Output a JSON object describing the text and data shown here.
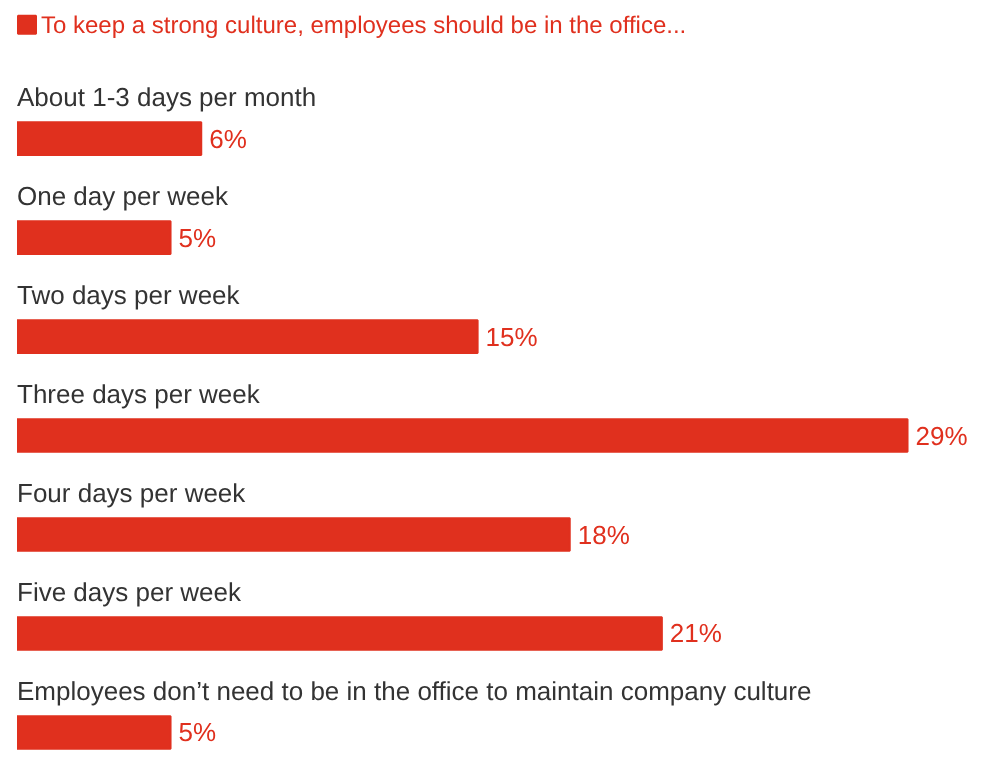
{
  "chart_data": {
    "type": "bar",
    "orientation": "horizontal",
    "categories": [
      "About 1-3 days per month",
      "One day per week",
      "Two days per week",
      "Three days per week",
      "Four days per week",
      "Five days per week",
      "Employees don’t need to be in the office to maintain company culture"
    ],
    "series": [
      {
        "name": "To keep a strong culture, employees should be in the office...",
        "color": "#e0301e",
        "values": [
          6,
          5,
          15,
          29,
          18,
          21,
          5
        ],
        "value_labels": [
          "6%",
          "5%",
          "15%",
          "29%",
          "18%",
          "21%",
          "5%"
        ]
      }
    ],
    "legend": "top left"
  }
}
